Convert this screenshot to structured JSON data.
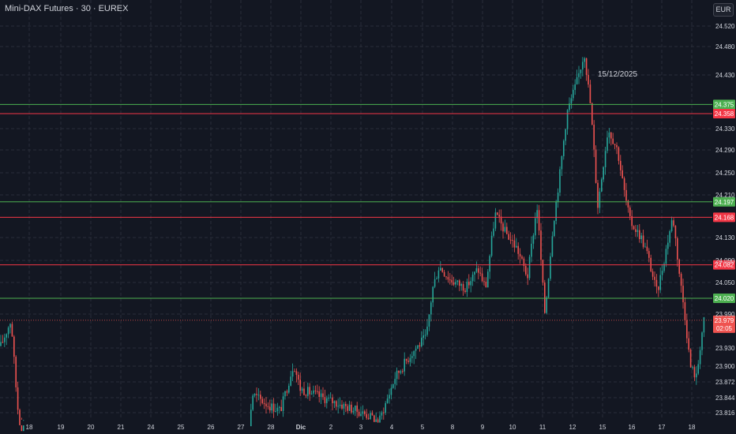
{
  "header": {
    "symbol_title": "Mini-DAX Futures · 30 · EUREX",
    "currency": "EUR"
  },
  "colors": {
    "background": "#131722",
    "grid": "#2a2e39",
    "up": "#26a69a",
    "down": "#ef5350",
    "support_line": "#4caf50",
    "resistance_line": "#f23645",
    "axis_text": "#d1d4dc",
    "white_line": "#787b86"
  },
  "chart_data": {
    "type": "candlestick",
    "title": "Mini-DAX Futures · 30 · EUREX",
    "interval": "30",
    "ylim": [
      23800,
      24550
    ],
    "grid": true,
    "y_ticks": [
      "24.520",
      "24.480",
      "24.430",
      "24.330",
      "24.290",
      "24.250",
      "24.210",
      "24.130",
      "24.090",
      "24.050",
      "23.990",
      "23.930",
      "23.900",
      "23.872",
      "23.844",
      "23.816"
    ],
    "x_ticks": [
      "18",
      "19",
      "20",
      "21",
      "24",
      "25",
      "26",
      "27",
      "28",
      "Dic",
      "2",
      "3",
      "4",
      "5",
      "8",
      "9",
      "10",
      "11",
      "12",
      "15",
      "16",
      "17",
      "18"
    ],
    "horizontal_levels": [
      {
        "label": "24.375",
        "value": 24375,
        "color": "#4caf50"
      },
      {
        "label": "24.358",
        "value": 24358,
        "color": "#f23645"
      },
      {
        "label": "24.197",
        "value": 24197,
        "color": "#4caf50"
      },
      {
        "label": "24.168",
        "value": 24168,
        "color": "#f23645"
      },
      {
        "label": "24.082",
        "value": 24082,
        "color": "#f23645"
      },
      {
        "label": "24.020",
        "value": 24020,
        "color": "#4caf50"
      }
    ],
    "last_price": {
      "label": "23.979",
      "value": 23979,
      "countdown": "02:05"
    },
    "annotation": "15/12/2025",
    "path": [
      [
        0,
        23930
      ],
      [
        14,
        23980
      ],
      [
        22,
        23830
      ],
      [
        26,
        23790
      ],
      [
        315,
        23790
      ],
      [
        320,
        23850
      ],
      [
        340,
        23830
      ],
      [
        355,
        23820
      ],
      [
        372,
        23905
      ],
      [
        380,
        23860
      ],
      [
        460,
        23815
      ],
      [
        480,
        23800
      ],
      [
        500,
        23880
      ],
      [
        520,
        23920
      ],
      [
        540,
        23950
      ],
      [
        548,
        24040
      ],
      [
        556,
        24080
      ],
      [
        570,
        24055
      ],
      [
        590,
        24040
      ],
      [
        605,
        24075
      ],
      [
        615,
        24040
      ],
      [
        627,
        24175
      ],
      [
        640,
        24140
      ],
      [
        655,
        24110
      ],
      [
        668,
        24060
      ],
      [
        680,
        24190
      ],
      [
        690,
        23990
      ],
      [
        700,
        24150
      ],
      [
        710,
        24260
      ],
      [
        718,
        24360
      ],
      [
        730,
        24415
      ],
      [
        740,
        24470
      ],
      [
        748,
        24370
      ],
      [
        757,
        24190
      ],
      [
        770,
        24330
      ],
      [
        782,
        24290
      ],
      [
        790,
        24220
      ],
      [
        798,
        24160
      ],
      [
        812,
        24130
      ],
      [
        820,
        24100
      ],
      [
        832,
        24030
      ],
      [
        845,
        24120
      ],
      [
        852,
        24170
      ],
      [
        860,
        24070
      ],
      [
        868,
        23980
      ],
      [
        874,
        23900
      ],
      [
        882,
        23880
      ],
      [
        888,
        23950
      ],
      [
        893,
        23990
      ]
    ]
  }
}
